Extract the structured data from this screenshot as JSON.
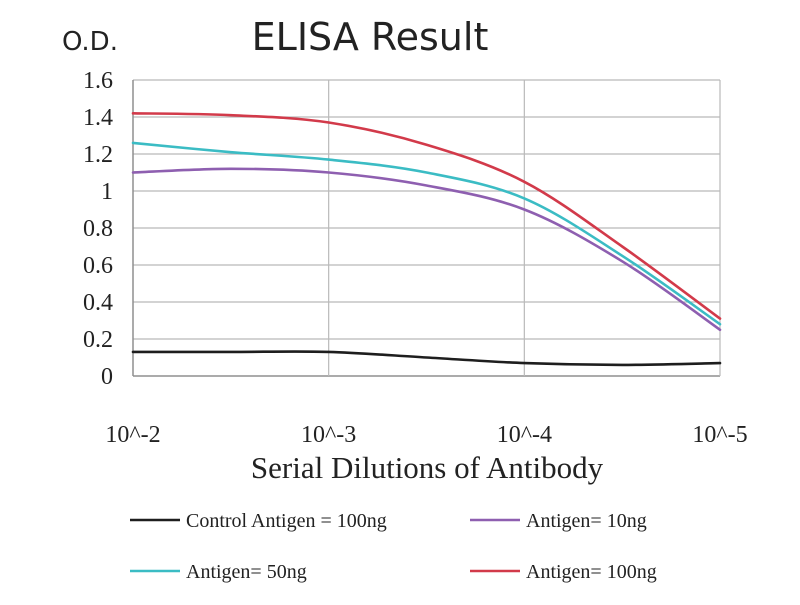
{
  "chart_data": {
    "type": "line",
    "title": "ELISA Result",
    "ylabel": "O.D.",
    "xlabel": "Serial Dilutions of Antibody",
    "categories": [
      "10^-2",
      "10^-3",
      "10^-4",
      "10^-5"
    ],
    "x": [
      -2,
      -2.5,
      -3,
      -3.5,
      -4,
      -4.5,
      -5
    ],
    "ylim": [
      0,
      1.6
    ],
    "yticks": [
      "0",
      "0.2",
      "0.4",
      "0.6",
      "0.8",
      "1",
      "1.2",
      "1.4",
      "1.6"
    ],
    "grid": true,
    "legend_position": "bottom",
    "series": [
      {
        "name": "Control Antigen = 100ng",
        "color": "#1e1e1e",
        "values": [
          0.13,
          0.13,
          0.13,
          0.1,
          0.07,
          0.06,
          0.07
        ]
      },
      {
        "name": "Antigen= 10ng",
        "color": "#8e5fb0",
        "values": [
          1.1,
          1.12,
          1.1,
          1.03,
          0.9,
          0.62,
          0.25
        ]
      },
      {
        "name": "Antigen= 50ng",
        "color": "#3bbcc4",
        "values": [
          1.26,
          1.21,
          1.17,
          1.1,
          0.96,
          0.65,
          0.28
        ]
      },
      {
        "name": "Antigen= 100ng",
        "color": "#d23a4a",
        "values": [
          1.42,
          1.41,
          1.37,
          1.25,
          1.05,
          0.7,
          0.31
        ]
      }
    ]
  }
}
